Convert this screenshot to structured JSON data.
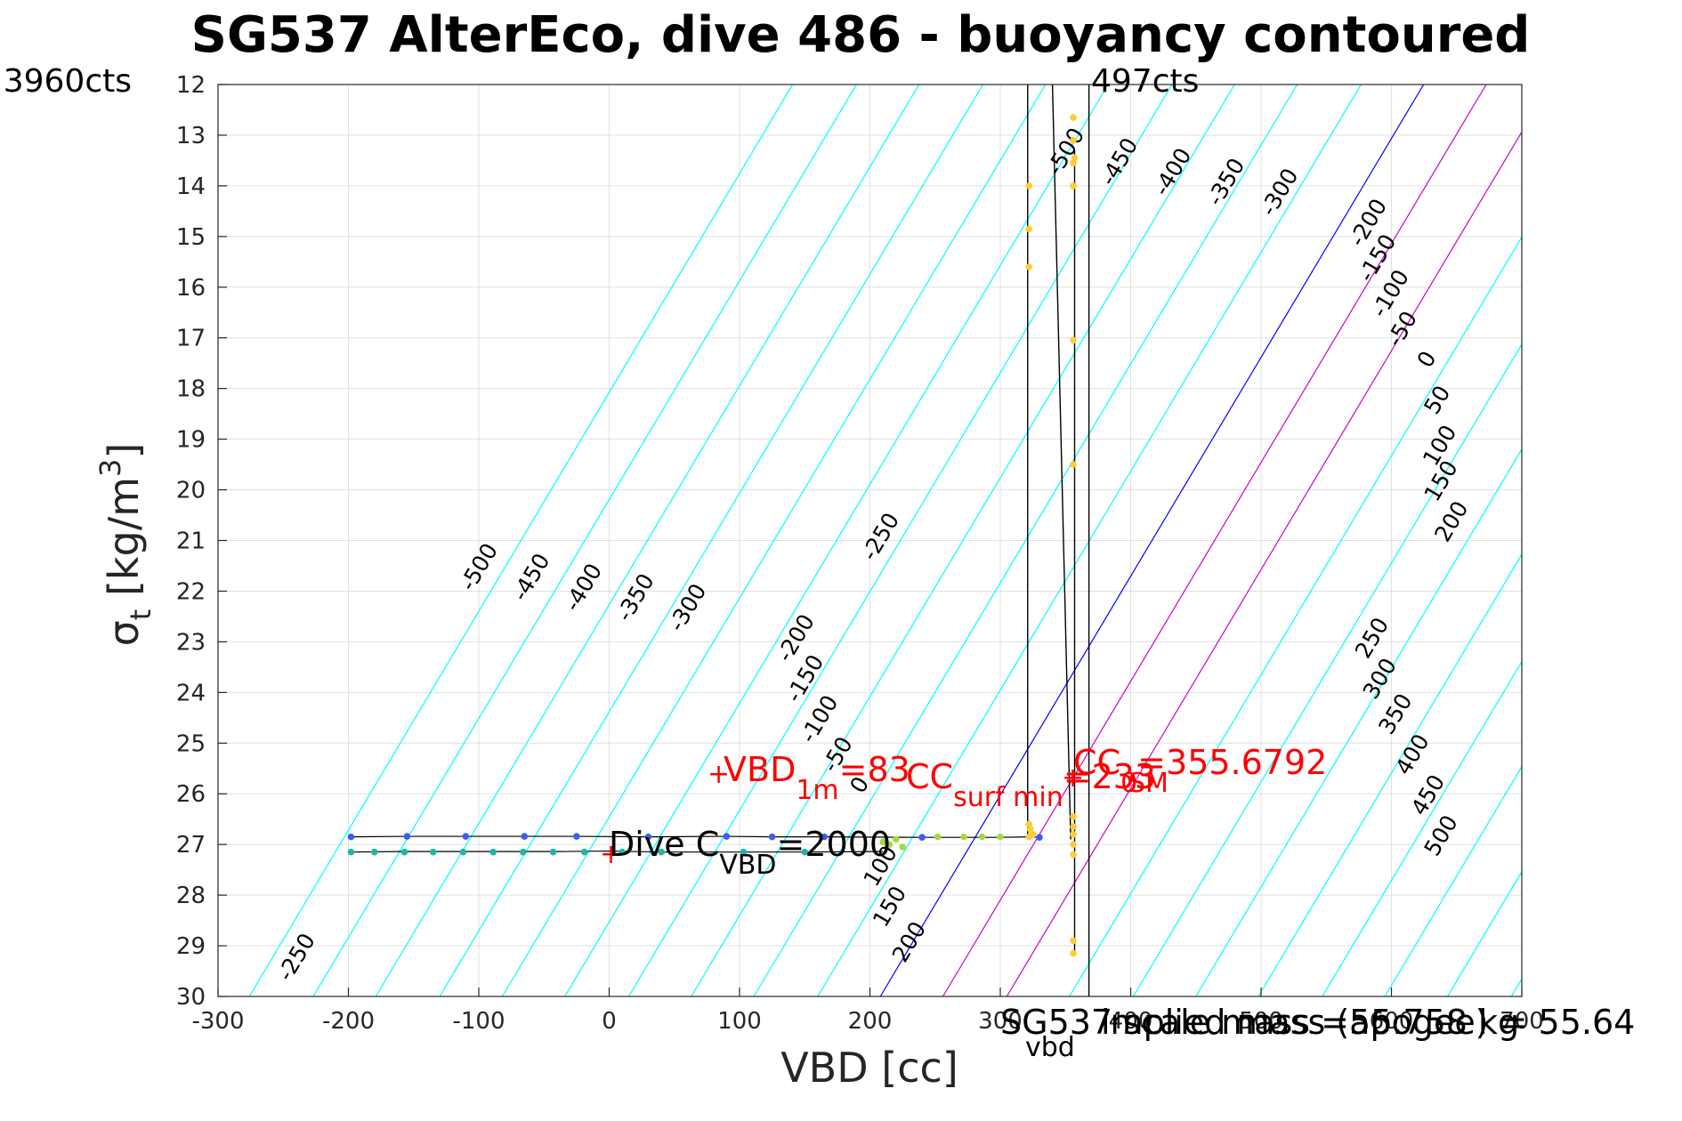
{
  "chart_data": {
    "type": "scatter",
    "title": "SG537 AlterEco, dive 486 - buoyancy contoured",
    "xlabel": "VBD [cc]",
    "ylabel_main": "σ",
    "ylabel_sub": "t",
    "ylabel_rest": " [kg/m",
    "ylabel_sup": "3",
    "ylabel_end": "]",
    "xlim": [
      -300,
      700
    ],
    "ylim": [
      12,
      30
    ],
    "y_reversed": true,
    "grid": true,
    "x_ticks": [
      "-300",
      "-200",
      "-100",
      "0",
      "100",
      "200",
      "300",
      "400",
      "500",
      "600",
      "700"
    ],
    "y_ticks": [
      "12",
      "13",
      "14",
      "15",
      "16",
      "17",
      "18",
      "19",
      "20",
      "21",
      "22",
      "23",
      "24",
      "25",
      "26",
      "27",
      "28",
      "29",
      "30"
    ],
    "contour_slope": 0.0432,
    "contours": [
      {
        "level": -500,
        "x_at_y30": -276,
        "color": "#00ffff"
      },
      {
        "level": -450,
        "x_at_y30": -227,
        "color": "#00ffff"
      },
      {
        "level": -400,
        "x_at_y30": -179,
        "color": "#00ffff"
      },
      {
        "level": -350,
        "x_at_y30": -130,
        "color": "#00ffff"
      },
      {
        "level": -300,
        "x_at_y30": -82,
        "color": "#00ffff"
      },
      {
        "level": -250,
        "x_at_y30": -34,
        "color": "#00ffff"
      },
      {
        "level": -200,
        "x_at_y30": 15,
        "color": "#00ffff"
      },
      {
        "level": -150,
        "x_at_y30": 63,
        "color": "#00ffff"
      },
      {
        "level": -100,
        "x_at_y30": 111,
        "color": "#00ffff"
      },
      {
        "level": -50,
        "x_at_y30": 160,
        "color": "#00ffff"
      },
      {
        "level": 0,
        "x_at_y30": 208,
        "color": "#0000ff"
      },
      {
        "level": 50,
        "x_at_y30": 256,
        "color": "#cc00cc"
      },
      {
        "level": 100,
        "x_at_y30": 305,
        "color": "#cc00cc"
      },
      {
        "level": 150,
        "x_at_y30": 353,
        "color": "#00ffff"
      },
      {
        "level": 200,
        "x_at_y30": 402,
        "color": "#00ffff"
      },
      {
        "level": 250,
        "x_at_y30": 450,
        "color": "#00ffff"
      },
      {
        "level": 300,
        "x_at_y30": 498,
        "color": "#00ffff"
      },
      {
        "level": 350,
        "x_at_y30": 547,
        "color": "#00ffff"
      },
      {
        "level": 400,
        "x_at_y30": 595,
        "color": "#00ffff"
      },
      {
        "level": 450,
        "x_at_y30": 643,
        "color": "#00ffff"
      },
      {
        "level": 500,
        "x_at_y30": 692,
        "color": "#00ffff"
      }
    ],
    "contour_labels": [
      {
        "text": "-500",
        "x": -95,
        "y": 21.6
      },
      {
        "text": "-450",
        "x": -55,
        "y": 21.8
      },
      {
        "text": "-400",
        "x": -15,
        "y": 22.0
      },
      {
        "text": "-350",
        "x": 25,
        "y": 22.2
      },
      {
        "text": "-300",
        "x": 65,
        "y": 22.4
      },
      {
        "text": "-250",
        "x": 213,
        "y": 21.0
      },
      {
        "text": "-200",
        "x": 148,
        "y": 23.0
      },
      {
        "text": "-150",
        "x": 155,
        "y": 23.8
      },
      {
        "text": "-100",
        "x": 166,
        "y": 24.6
      },
      {
        "text": "-50",
        "x": 180,
        "y": 25.3
      },
      {
        "text": "0",
        "x": 197,
        "y": 25.9
      },
      {
        "text": "-250",
        "x": -235,
        "y": 29.3
      },
      {
        "text": "100",
        "x": 213,
        "y": 27.5
      },
      {
        "text": "150",
        "x": 220,
        "y": 28.3
      },
      {
        "text": "200",
        "x": 235,
        "y": 29.0
      },
      {
        "text": "-500",
        "x": 355,
        "y": 13.4
      },
      {
        "text": "-450",
        "x": 396,
        "y": 13.6
      },
      {
        "text": "-400",
        "x": 437,
        "y": 13.8
      },
      {
        "text": "-350",
        "x": 478,
        "y": 14.0
      },
      {
        "text": "-300",
        "x": 519,
        "y": 14.2
      },
      {
        "text": "-200",
        "x": 587,
        "y": 14.8
      },
      {
        "text": "-150",
        "x": 594,
        "y": 15.5
      },
      {
        "text": "-100",
        "x": 604,
        "y": 16.2
      },
      {
        "text": "-50",
        "x": 613,
        "y": 16.9
      },
      {
        "text": "0",
        "x": 632,
        "y": 17.5
      },
      {
        "text": "50",
        "x": 640,
        "y": 18.3
      },
      {
        "text": "100",
        "x": 642,
        "y": 19.2
      },
      {
        "text": "150",
        "x": 643,
        "y": 19.9
      },
      {
        "text": "200",
        "x": 651,
        "y": 20.7
      },
      {
        "text": "250",
        "x": 590,
        "y": 23.0
      },
      {
        "text": "300",
        "x": 596,
        "y": 23.8
      },
      {
        "text": "350",
        "x": 608,
        "y": 24.5
      },
      {
        "text": "400",
        "x": 621,
        "y": 25.3
      },
      {
        "text": "450",
        "x": 633,
        "y": 26.1
      },
      {
        "text": "500",
        "x": 643,
        "y": 26.9
      }
    ],
    "descent_trace": [
      [
        -198,
        26.85
      ],
      [
        -155,
        26.84
      ],
      [
        -110,
        26.84
      ],
      [
        -65,
        26.84
      ],
      [
        -25,
        26.84
      ],
      [
        30,
        26.85
      ],
      [
        90,
        26.84
      ],
      [
        125,
        26.85
      ],
      [
        165,
        26.85
      ],
      [
        240,
        26.86
      ],
      [
        270,
        26.86
      ],
      [
        300,
        26.86
      ],
      [
        322,
        26.85
      ],
      [
        330,
        26.86
      ]
    ],
    "descent_points": [
      [
        -198,
        26.85
      ],
      [
        -155,
        26.84
      ],
      [
        -110,
        26.84
      ],
      [
        -65,
        26.84
      ],
      [
        -25,
        26.84
      ],
      [
        30,
        26.85
      ],
      [
        90,
        26.84
      ],
      [
        125,
        26.85
      ],
      [
        165,
        26.85
      ],
      [
        240,
        26.86
      ],
      [
        330,
        26.86
      ]
    ],
    "ascent_trace": [
      [
        -198,
        27.15
      ],
      [
        -160,
        27.14
      ],
      [
        -120,
        27.14
      ],
      [
        -80,
        27.14
      ],
      [
        -40,
        27.14
      ],
      [
        0,
        27.13
      ],
      [
        40,
        27.15
      ],
      [
        100,
        27.15
      ],
      [
        150,
        27.15
      ],
      [
        210,
        27.14
      ]
    ],
    "ascent_points": [
      [
        -198,
        27.15
      ],
      [
        -180,
        27.15
      ],
      [
        -157,
        27.15
      ],
      [
        -135,
        27.15
      ],
      [
        -112,
        27.15
      ],
      [
        -89,
        27.15
      ],
      [
        -66,
        27.15
      ],
      [
        -43,
        27.15
      ],
      [
        -19,
        27.15
      ],
      [
        10,
        27.15
      ],
      [
        40,
        27.15
      ],
      [
        103,
        27.15
      ],
      [
        150,
        27.15
      ]
    ],
    "green_points": [
      [
        210,
        26.95
      ],
      [
        215,
        27.0
      ],
      [
        220,
        26.9
      ],
      [
        225,
        27.05
      ],
      [
        252,
        26.85
      ],
      [
        272,
        26.85
      ],
      [
        286,
        26.85
      ],
      [
        300,
        26.85
      ]
    ],
    "yellow_points": [
      [
        322,
        14.0
      ],
      [
        322,
        14.85
      ],
      [
        322,
        15.6
      ],
      [
        322,
        26.6
      ],
      [
        323,
        26.7
      ],
      [
        322,
        26.85
      ],
      [
        325,
        26.8
      ],
      [
        356,
        12.65
      ],
      [
        356,
        13.1
      ],
      [
        357,
        13.45
      ],
      [
        356,
        13.55
      ],
      [
        356,
        14.0
      ],
      [
        356,
        17.05
      ],
      [
        356,
        19.5
      ],
      [
        356,
        26.45
      ],
      [
        356,
        26.65
      ],
      [
        356,
        26.8
      ],
      [
        356,
        27.0
      ],
      [
        356,
        27.2
      ],
      [
        356,
        28.9
      ],
      [
        356,
        29.15
      ]
    ],
    "vertical_lines": [
      {
        "x1": 321,
        "y1": 12.0,
        "x2": 321,
        "y2": 26.85
      },
      {
        "x1": 340,
        "y1": 12.0,
        "x2": 354,
        "y2": 26.9
      },
      {
        "x1": 357,
        "y1": 13.3,
        "x2": 357,
        "y2": 29.2
      },
      {
        "x1": 368,
        "y1": 12.0,
        "x2": 368,
        "y2": 30.0
      }
    ],
    "annotations": {
      "top_left_cts": "3960cts",
      "top_right_cts": "497cts",
      "vbd1m_label": "VBD",
      "vbd1m_sub": "1m",
      "vbd1m_value": "=83",
      "ccsurf_label": "CC",
      "ccsurf_sub": "surf min",
      "ccsurf_value": "=233",
      "cc0_label": "CC",
      "cc0_sub": "0",
      "cc0_value": "=355.6792",
      "cc_sm": "SM",
      "dive_label": "Dive C",
      "dive_sub": "VBD",
      "dive_value": "=2000",
      "bottom_sub": "vbd",
      "bottom_text_a": "SG537 scale mass =55.758 kg",
      "bottom_text_b": "implied mass (apogee) = 55.64",
      "plus_marker": "+"
    },
    "colors": {
      "descent": "#3b5cf5",
      "ascent": "#22b6a0",
      "green": "#a8d93c",
      "yellow": "#ffcc33",
      "annot_red": "#ff0000",
      "grid": "#e0e0e0"
    }
  }
}
